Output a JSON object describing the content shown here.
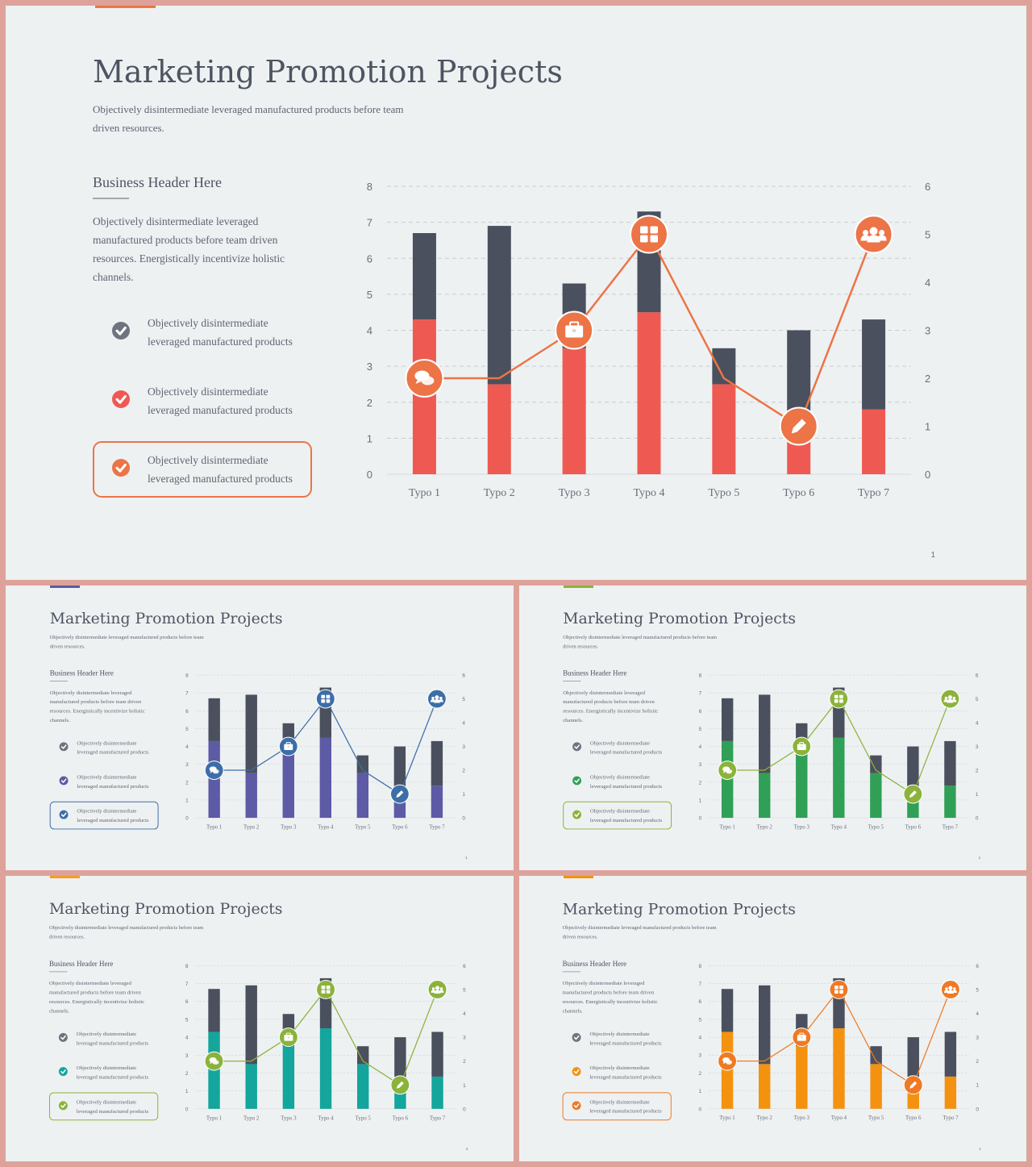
{
  "slide_title": "Marketing Promotion Projects",
  "subtitle_lines": [
    "Objectively disintermediate leveraged manufactured products before team",
    "driven resources."
  ],
  "business_header": "Business Header Here",
  "body_lines": [
    "Objectively disintermediate leveraged",
    "manufactured products before team driven",
    "resources. Energistically incentivize holistic",
    "channels."
  ],
  "list_items": [
    [
      "Objectively disintermediate",
      "leveraged manufactured products"
    ],
    [
      "Objectively disintermediate",
      "leveraged manufactured products"
    ],
    [
      "Objectively disintermediate",
      "leveraged manufactured products"
    ]
  ],
  "slides": [
    {
      "page_number": "1",
      "accent": "#ee5a52",
      "line_color": "#ec7446",
      "icon_color": "#ec7446",
      "check_colors": [
        "#6e7480",
        "#ee5a52",
        "#ec7446"
      ],
      "box_color": "#ec7446",
      "topbar_color": "#ec7446"
    },
    {
      "page_number": "1",
      "accent": "#5d5aa6",
      "line_color": "#3c6ea8",
      "icon_color": "#3c6ea8",
      "check_colors": [
        "#6e7480",
        "#5d5aa6",
        "#3c6ea8"
      ],
      "box_color": "#3c6ea8",
      "topbar_color": "#5d5aa6"
    },
    {
      "page_number": "1",
      "accent": "#2fa055",
      "line_color": "#8bb33b",
      "icon_color": "#8bb33b",
      "check_colors": [
        "#6e7480",
        "#2fa055",
        "#8bb33b"
      ],
      "box_color": "#8bb33b",
      "topbar_color": "#8bb33b"
    },
    {
      "page_number": "4",
      "accent": "#14a59c",
      "line_color": "#8bb33b",
      "icon_color": "#8bb33b",
      "check_colors": [
        "#6e7480",
        "#14a59c",
        "#8bb33b"
      ],
      "box_color": "#8bb33b",
      "topbar_color": "#f39c2b"
    },
    {
      "page_number": "1",
      "accent": "#f4920f",
      "line_color": "#ee7a25",
      "icon_color": "#ee7a25",
      "check_colors": [
        "#6e7480",
        "#f4920f",
        "#ee7a25"
      ],
      "box_color": "#ee7a25",
      "topbar_color": "#f4920f"
    }
  ],
  "chart_data": {
    "type": "bar",
    "categories": [
      "Typo 1",
      "Typo 2",
      "Typo 3",
      "Typo 4",
      "Typo 5",
      "Typo 6",
      "Typo 7"
    ],
    "series": [
      {
        "values": [
          4.3,
          2.5,
          3.5,
          4.5,
          2.5,
          1.0,
          1.8
        ]
      },
      {
        "values": [
          2.4,
          4.4,
          1.8,
          2.8,
          1.0,
          3.0,
          2.5
        ]
      }
    ],
    "stacked": true,
    "line_series": {
      "values": [
        2.0,
        2.0,
        3.0,
        5.0,
        2.0,
        1.0,
        5.0
      ],
      "axis": "right"
    },
    "line_icons": [
      "chat-icon",
      null,
      "briefcase-icon",
      "grid-icon",
      null,
      "pencil-icon",
      "people-icon"
    ],
    "ylim": [
      0,
      8
    ],
    "y_ticks": [
      "0",
      "1",
      "2",
      "3",
      "4",
      "5",
      "6",
      "7",
      "8"
    ],
    "y2lim": [
      0,
      6
    ],
    "y2_ticks": [
      "0",
      "1",
      "2",
      "3",
      "4",
      "5",
      "6"
    ],
    "grid": true,
    "stack_top_color": "#4a505d"
  }
}
